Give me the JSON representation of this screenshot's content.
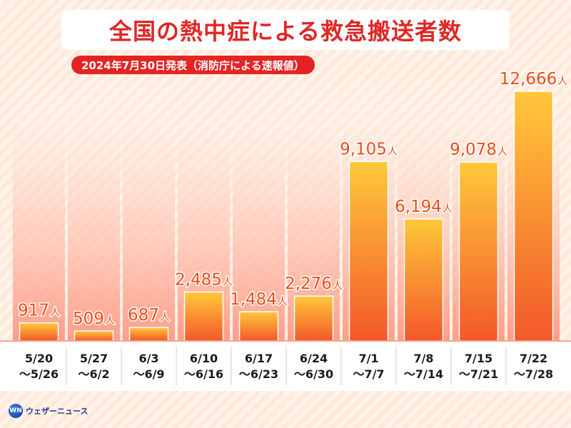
{
  "chart_data": {
    "type": "bar",
    "title": "全国の熱中症による救急搬送者数",
    "subtitle": "2024年7月30日発表（消防庁による速報値）",
    "unit": "人",
    "categories": [
      [
        "5/20",
        "〜5/26"
      ],
      [
        "5/27",
        "〜6/2"
      ],
      [
        "6/3",
        "〜6/9"
      ],
      [
        "6/10",
        "〜6/16"
      ],
      [
        "6/17",
        "〜6/23"
      ],
      [
        "6/24",
        "〜6/30"
      ],
      [
        "7/1",
        "〜7/7"
      ],
      [
        "7/8",
        "〜7/14"
      ],
      [
        "7/15",
        "〜7/21"
      ],
      [
        "7/22",
        "〜7/28"
      ]
    ],
    "values": [
      917,
      509,
      687,
      2485,
      1484,
      2276,
      9105,
      6194,
      9078,
      12666
    ],
    "value_labels": [
      "917",
      "509",
      "687",
      "2,485",
      "1,484",
      "2,276",
      "9,105",
      "6,194",
      "9,078",
      "12,666"
    ],
    "colors": {
      "bar_top": "#ffc83a",
      "bar_bottom": "#f3582a",
      "label": "#f04a14",
      "title": "#e02626",
      "subtitle_bg": "#e42424"
    }
  },
  "logo": {
    "mark": "WN",
    "text": "ウェザーニュース"
  }
}
